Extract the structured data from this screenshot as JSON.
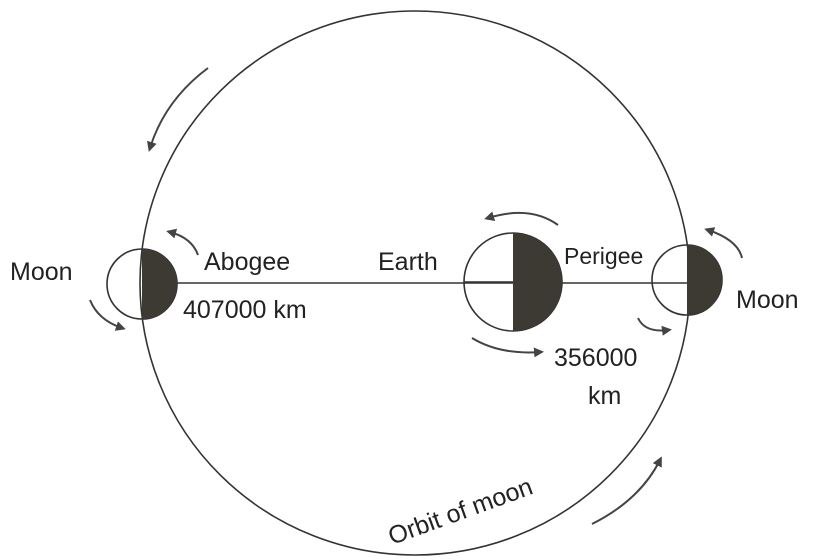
{
  "labels": {
    "moon_left": "Moon",
    "apogee": "Abogee",
    "apogee_distance": "407000 km",
    "earth": "Earth",
    "perigee": "Perigee",
    "perigee_distance": [
      "356000",
      "km"
    ],
    "moon_right": "Moon",
    "orbit": "Orbit of moon"
  }
}
